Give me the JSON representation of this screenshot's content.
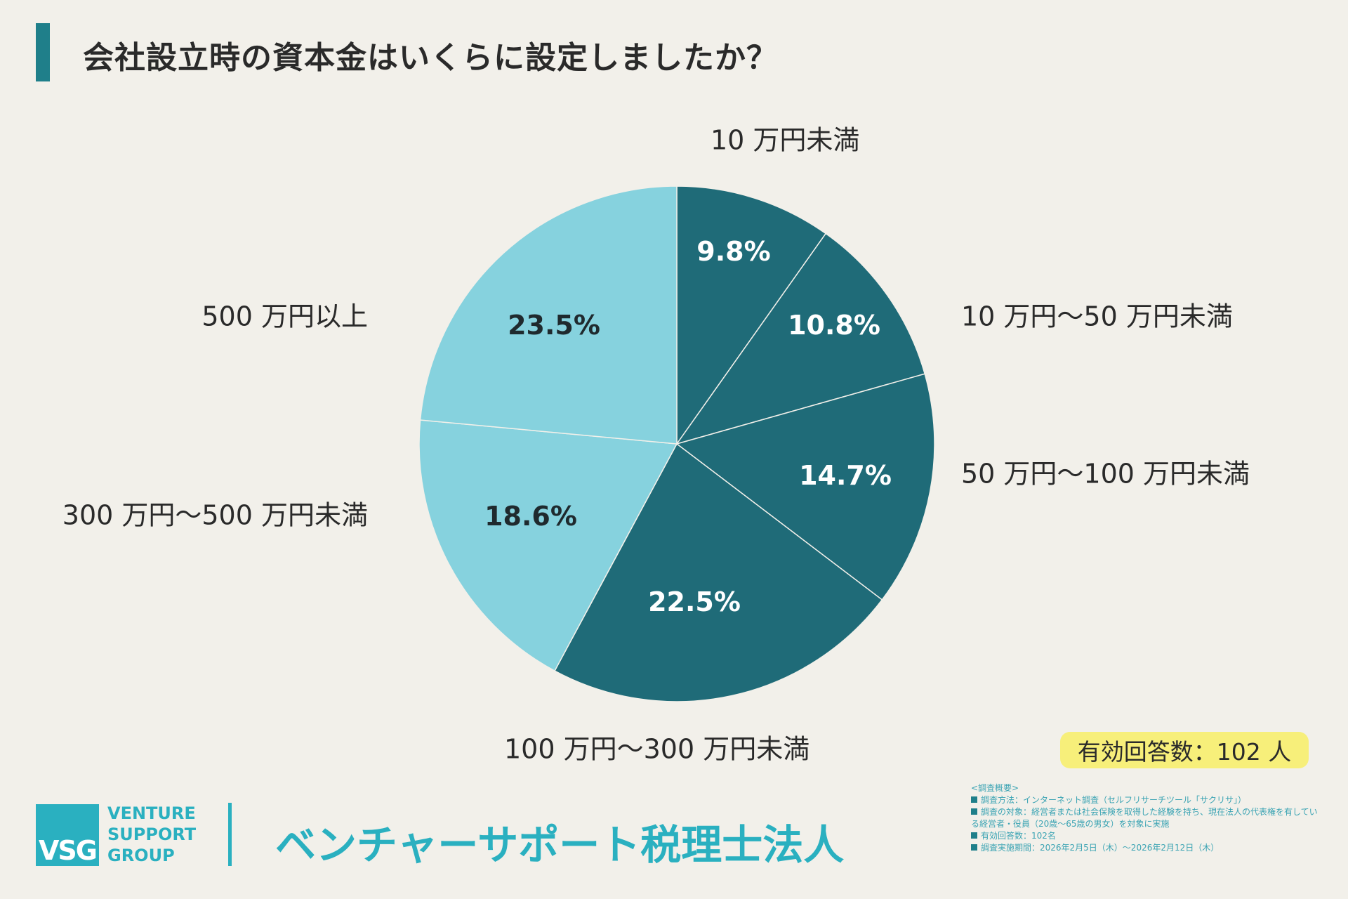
{
  "title": "会社設立時の資本金はいくらに設定しましたか？",
  "chart_data": {
    "type": "pie",
    "title": "会社設立時の資本金はいくらに設定しましたか？",
    "start": "top",
    "direction": "clockwise",
    "categories": [
      "10 万円未満",
      "10 万円〜50 万円未満",
      "50 万円〜100 万円未満",
      "100 万円〜300 万円未満",
      "300 万円〜500 万円未満",
      "500 万円以上"
    ],
    "values": [
      9.8,
      10.8,
      14.7,
      22.5,
      18.6,
      23.5
    ],
    "value_labels": [
      "9.8%",
      "10.8%",
      "14.7%",
      "22.5%",
      "18.6%",
      "23.5%"
    ],
    "colors": [
      "#1f6b78",
      "#1f6b78",
      "#1f6b78",
      "#1f6b78",
      "#86d2de",
      "#86d2de"
    ],
    "label_colors": [
      "#ffffff",
      "#ffffff",
      "#ffffff",
      "#ffffff",
      "#1f2a2e",
      "#1f2a2e"
    ]
  },
  "badge": {
    "text": "有効回答数：102 人",
    "color": "#f7ef7a"
  },
  "notes": {
    "heading": "<調査概要>",
    "items": [
      "調査方法：インターネット調査（セルフリサーチツール「サクリサ」）",
      "調査の対象：経営者または社会保険を取得した経験を持ち、現在法人の代表権を有している経営者・役員（20歳〜65歳の男女）を対象に実施",
      "有効回答数：102名",
      "調査実施期間：2026年2月5日（木）〜2026年2月12日（木）"
    ]
  },
  "logo": {
    "mark": "VSG",
    "line1": "VENTURE",
    "line2": "SUPPORT",
    "line3": "GROUP",
    "company": "ベンチャーサポート税理士法人",
    "color": "#2ab0c0"
  }
}
